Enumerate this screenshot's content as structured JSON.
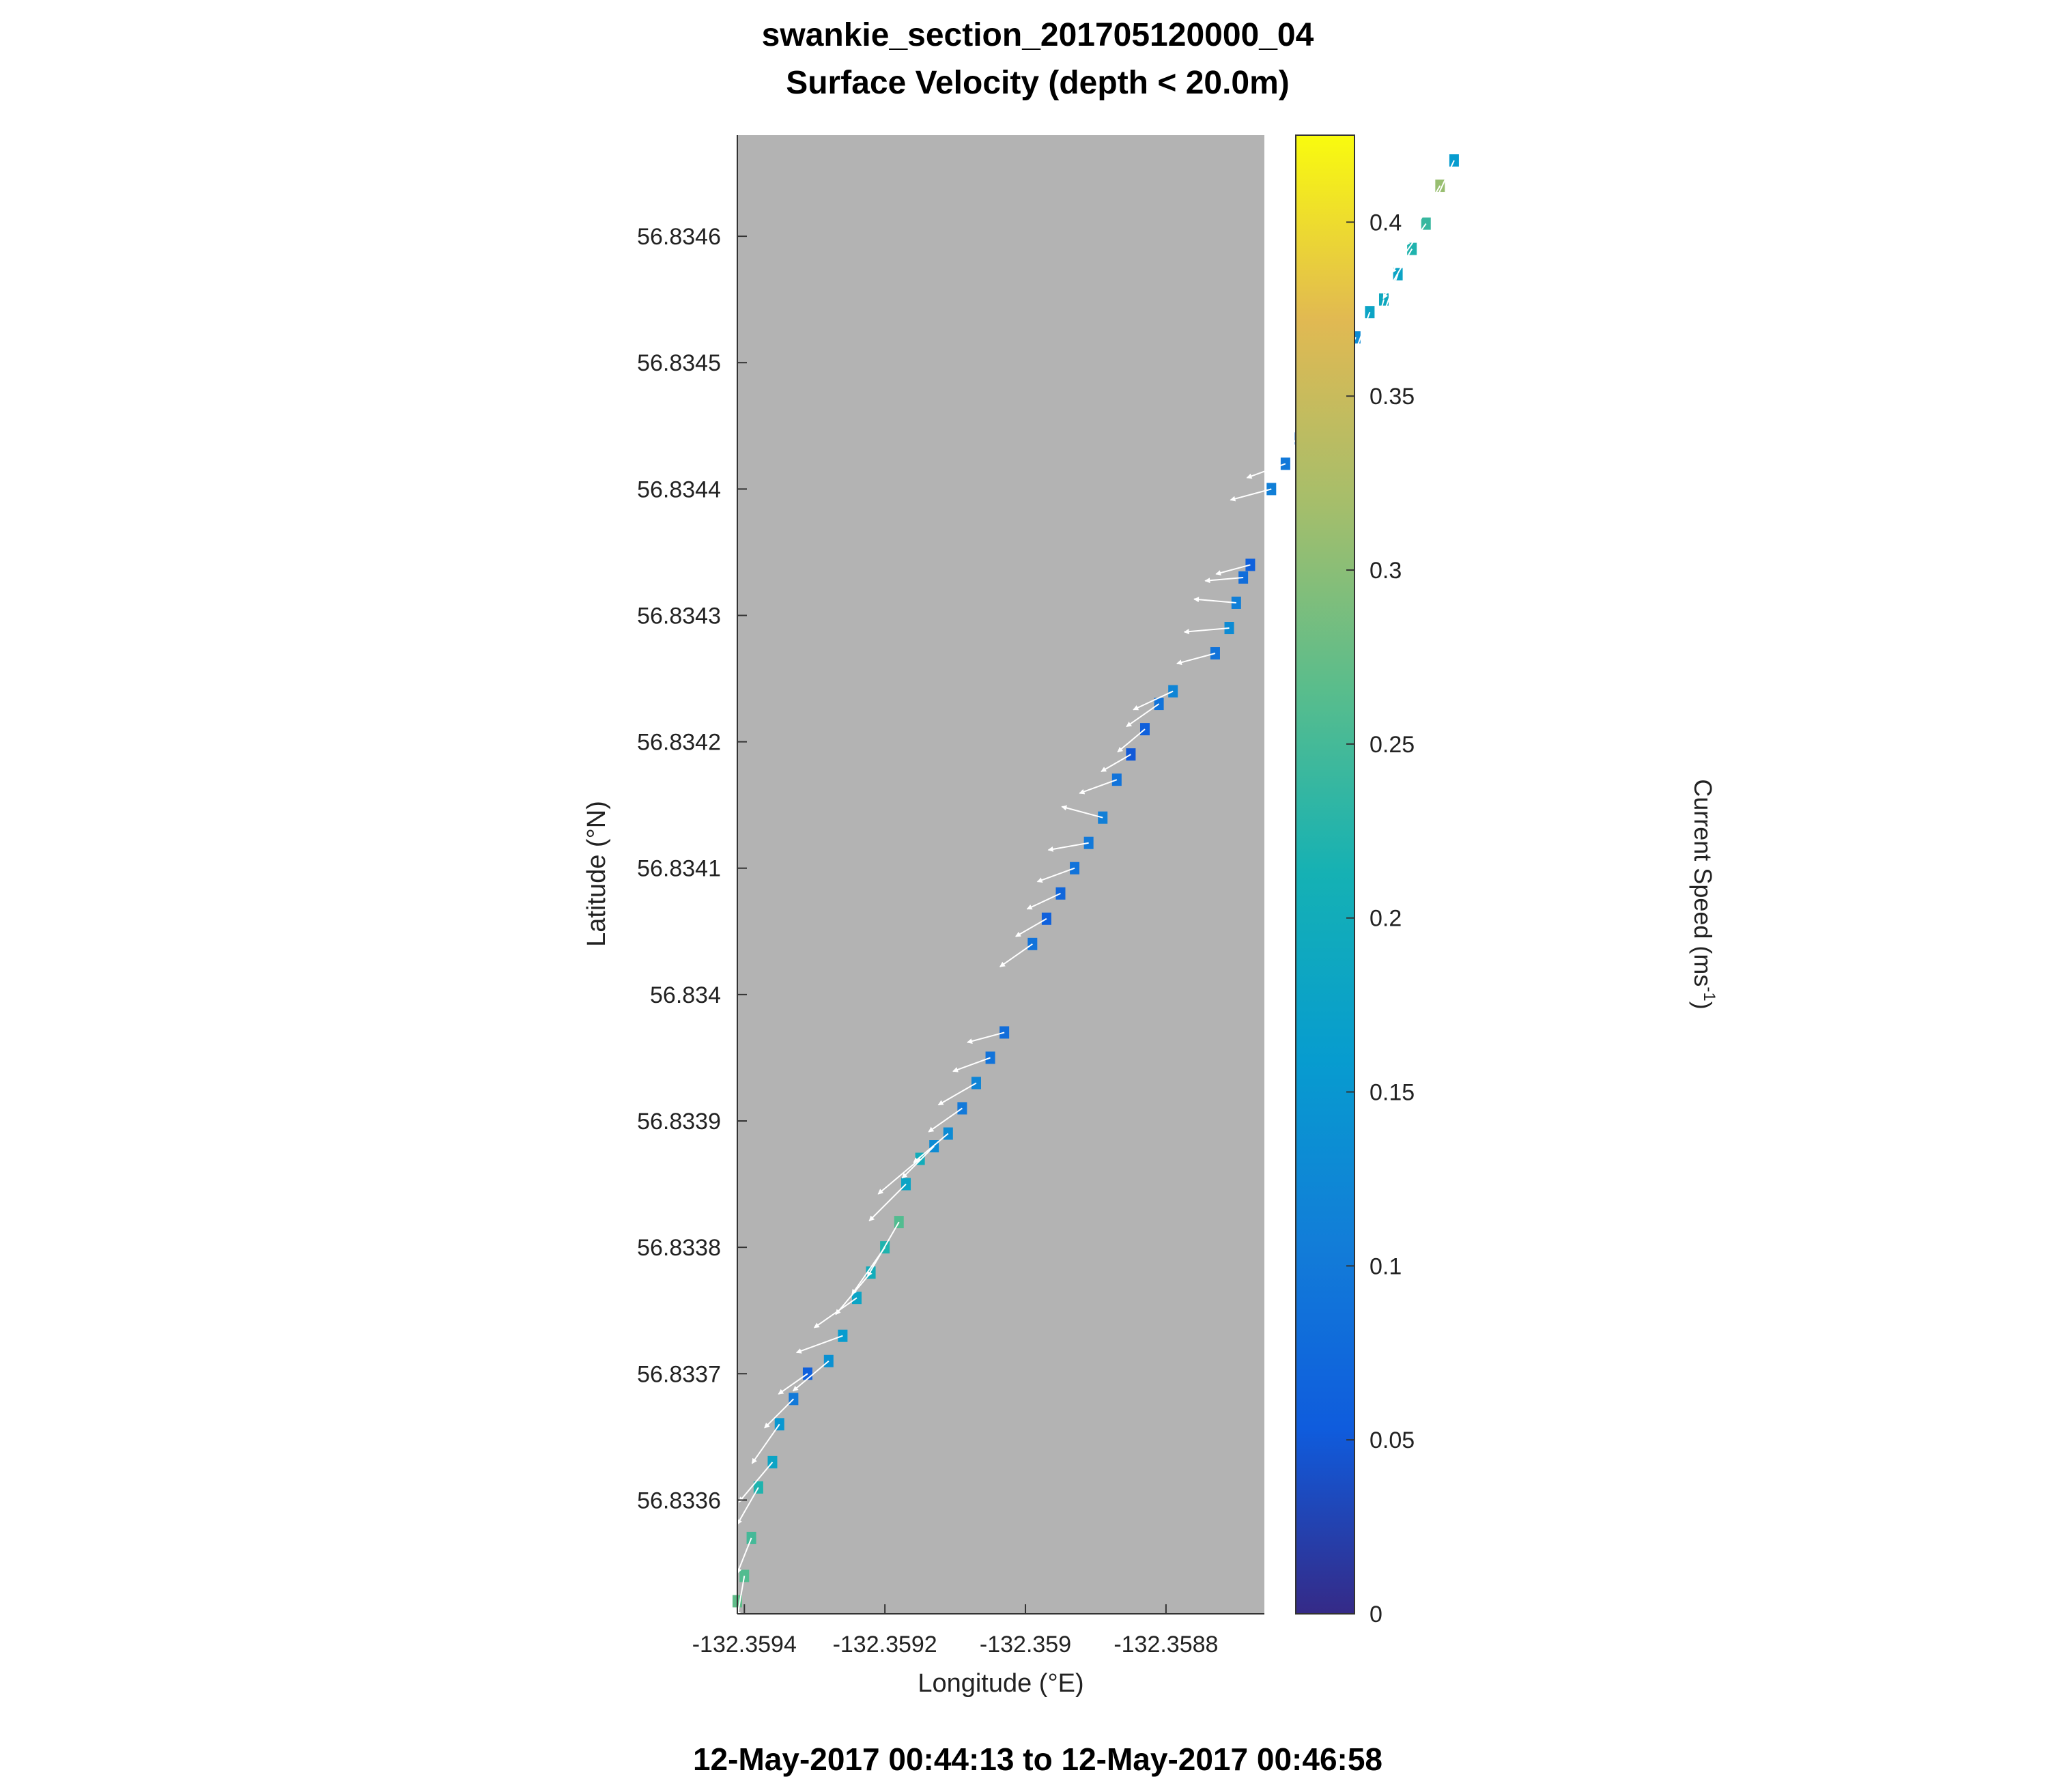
{
  "figure": {
    "title_line1": "swankie_section_201705120000_04",
    "title_line2": "Surface Velocity (depth < 20.0m)",
    "time_range": "12-May-2017 00:44:13 to 12-May-2017 00:46:58"
  },
  "colorbar": {
    "label": "Current Speed (ms",
    "label_sup": "-1",
    "label_end": ")",
    "ticks": [
      "0",
      "0.05",
      "0.1",
      "0.15",
      "0.2",
      "0.25",
      "0.3",
      "0.35",
      "0.4"
    ],
    "colormap": "parula"
  },
  "chart_data": {
    "type": "scatter",
    "title": "swankie_section_201705120000_04 Surface Velocity (depth < 20.0m)",
    "xlabel": "Longitude (°E)",
    "ylabel": "Latitude (°N)",
    "xlim": [
      -132.35941,
      -132.35866
    ],
    "ylim": [
      56.83351,
      56.83468
    ],
    "clim": [
      0,
      0.425
    ],
    "background_color": "#b3b3b3",
    "arrow_color": "#ffffff",
    "x_ticks": [
      {
        "value": -132.3594,
        "label": "-132.3594"
      },
      {
        "value": -132.3592,
        "label": "-132.3592"
      },
      {
        "value": -132.359,
        "label": "-132.359"
      },
      {
        "value": -132.3588,
        "label": "-132.3588"
      }
    ],
    "y_ticks": [
      {
        "value": 56.8336,
        "label": "56.8336"
      },
      {
        "value": 56.8337,
        "label": "56.8337"
      },
      {
        "value": 56.8338,
        "label": "56.8338"
      },
      {
        "value": 56.8339,
        "label": "56.8339"
      },
      {
        "value": 56.834,
        "label": "56.834"
      },
      {
        "value": 56.8341,
        "label": "56.8341"
      },
      {
        "value": 56.8342,
        "label": "56.8342"
      },
      {
        "value": 56.8343,
        "label": "56.8343"
      },
      {
        "value": 56.8344,
        "label": "56.8344"
      },
      {
        "value": 56.8345,
        "label": "56.8345"
      },
      {
        "value": 56.8346,
        "label": "56.8346"
      }
    ],
    "points": [
      {
        "lon": -132.35941,
        "lat": 56.83352,
        "speed": 0.27,
        "dir": 225
      },
      {
        "lon": -132.3594,
        "lat": 56.83354,
        "speed": 0.26,
        "dir": 220
      },
      {
        "lon": -132.35939,
        "lat": 56.83357,
        "speed": 0.25,
        "dir": 215
      },
      {
        "lon": -132.35938,
        "lat": 56.83361,
        "speed": 0.22,
        "dir": 220
      },
      {
        "lon": -132.35936,
        "lat": 56.83363,
        "speed": 0.18,
        "dir": 230
      },
      {
        "lon": -132.35935,
        "lat": 56.83366,
        "speed": 0.15,
        "dir": 235
      },
      {
        "lon": -132.35933,
        "lat": 56.83368,
        "speed": 0.1,
        "dir": 225
      },
      {
        "lon": -132.35931,
        "lat": 56.8337,
        "speed": 0.06,
        "dir": 215
      },
      {
        "lon": -132.35928,
        "lat": 56.83371,
        "speed": 0.14,
        "dir": 220
      },
      {
        "lon": -132.35926,
        "lat": 56.83373,
        "speed": 0.16,
        "dir": 200
      },
      {
        "lon": -132.35924,
        "lat": 56.83376,
        "speed": 0.18,
        "dir": 215
      },
      {
        "lon": -132.35922,
        "lat": 56.83378,
        "speed": 0.2,
        "dir": 230
      },
      {
        "lon": -132.3592,
        "lat": 56.8338,
        "speed": 0.22,
        "dir": 235
      },
      {
        "lon": -132.35918,
        "lat": 56.83382,
        "speed": 0.26,
        "dir": 240
      },
      {
        "lon": -132.35917,
        "lat": 56.83385,
        "speed": 0.18,
        "dir": 225
      },
      {
        "lon": -132.35915,
        "lat": 56.83387,
        "speed": 0.2,
        "dir": 220
      },
      {
        "lon": -132.35913,
        "lat": 56.83388,
        "speed": 0.13,
        "dir": 225
      },
      {
        "lon": -132.35911,
        "lat": 56.83389,
        "speed": 0.13,
        "dir": 220
      },
      {
        "lon": -132.35909,
        "lat": 56.83391,
        "speed": 0.1,
        "dir": 215
      },
      {
        "lon": -132.35907,
        "lat": 56.83393,
        "speed": 0.12,
        "dir": 210
      },
      {
        "lon": -132.35905,
        "lat": 56.83395,
        "speed": 0.09,
        "dir": 200
      },
      {
        "lon": -132.35903,
        "lat": 56.83397,
        "speed": 0.08,
        "dir": 195
      },
      {
        "lon": -132.35899,
        "lat": 56.83404,
        "speed": 0.09,
        "dir": 215
      },
      {
        "lon": -132.35897,
        "lat": 56.83406,
        "speed": 0.06,
        "dir": 210
      },
      {
        "lon": -132.35895,
        "lat": 56.83408,
        "speed": 0.07,
        "dir": 205
      },
      {
        "lon": -132.35893,
        "lat": 56.8341,
        "speed": 0.09,
        "dir": 200
      },
      {
        "lon": -132.35891,
        "lat": 56.83412,
        "speed": 0.1,
        "dir": 190
      },
      {
        "lon": -132.35889,
        "lat": 56.83414,
        "speed": 0.11,
        "dir": 165
      },
      {
        "lon": -132.35887,
        "lat": 56.83417,
        "speed": 0.09,
        "dir": 200
      },
      {
        "lon": -132.35885,
        "lat": 56.83419,
        "speed": 0.05,
        "dir": 210
      },
      {
        "lon": -132.35883,
        "lat": 56.83421,
        "speed": 0.06,
        "dir": 220
      },
      {
        "lon": -132.35881,
        "lat": 56.83423,
        "speed": 0.09,
        "dir": 215
      },
      {
        "lon": -132.35879,
        "lat": 56.83424,
        "speed": 0.12,
        "dir": 205
      },
      {
        "lon": -132.35873,
        "lat": 56.83427,
        "speed": 0.09,
        "dir": 195
      },
      {
        "lon": -132.35871,
        "lat": 56.83429,
        "speed": 0.13,
        "dir": 185
      },
      {
        "lon": -132.3587,
        "lat": 56.83431,
        "speed": 0.11,
        "dir": 175
      },
      {
        "lon": -132.35869,
        "lat": 56.83433,
        "speed": 0.08,
        "dir": 185
      },
      {
        "lon": -132.35868,
        "lat": 56.83434,
        "speed": 0.06,
        "dir": 195
      },
      {
        "lon": -132.35865,
        "lat": 56.8344,
        "speed": 0.11,
        "dir": 195
      },
      {
        "lon": -132.35863,
        "lat": 56.83442,
        "speed": 0.1,
        "dir": 200
      },
      {
        "lon": -132.35861,
        "lat": 56.83444,
        "speed": 0.09,
        "dir": 210
      },
      {
        "lon": -132.35859,
        "lat": 56.83446,
        "speed": 0.07,
        "dir": 215
      },
      {
        "lon": -132.35857,
        "lat": 56.83448,
        "speed": 0.12,
        "dir": 225
      },
      {
        "lon": -132.35855,
        "lat": 56.8345,
        "speed": 0.1,
        "dir": 230
      },
      {
        "lon": -132.35853,
        "lat": 56.83452,
        "speed": 0.13,
        "dir": 245
      },
      {
        "lon": -132.35851,
        "lat": 56.83454,
        "speed": 0.18,
        "dir": 250
      },
      {
        "lon": -132.35849,
        "lat": 56.83455,
        "speed": 0.19,
        "dir": 255
      },
      {
        "lon": -132.35847,
        "lat": 56.83457,
        "speed": 0.18,
        "dir": 250
      },
      {
        "lon": -132.35845,
        "lat": 56.83459,
        "speed": 0.22,
        "dir": 240
      },
      {
        "lon": -132.35843,
        "lat": 56.83461,
        "speed": 0.24,
        "dir": 235
      },
      {
        "lon": -132.35841,
        "lat": 56.83464,
        "speed": 0.31,
        "dir": 240
      },
      {
        "lon": -132.35839,
        "lat": 56.83466,
        "speed": 0.16,
        "dir": 245
      }
    ]
  }
}
